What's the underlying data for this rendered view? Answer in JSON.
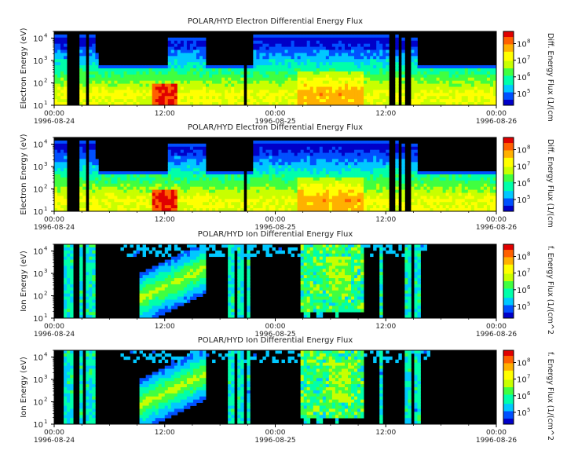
{
  "chart_data": [
    {
      "type": "heatmap",
      "title": "POLAR/HYD  Electron Differential Energy Flux",
      "ylabel": "Electron Energy (eV)",
      "yscale": "log",
      "ylim": [
        10,
        20000
      ],
      "y_ticks": [
        "10",
        "10",
        "10",
        "10"
      ],
      "y_tick_exponents": [
        "1",
        "2",
        "3",
        "4"
      ],
      "x_ticks": [
        "00:00",
        "12:00",
        "00:00",
        "12:00",
        "00:00"
      ],
      "x_dates": [
        "1996-08-24",
        "1996-08-25",
        "1996-08-26"
      ],
      "colorbar": {
        "label": "Diff. Energy Flux (1/(cm",
        "scale": "log",
        "tick_bases": [
          "10",
          "10",
          "10",
          "10"
        ],
        "tick_exponents": [
          "5",
          "6",
          "7",
          "8"
        ]
      }
    },
    {
      "type": "heatmap",
      "title": "POLAR/HYD  Electron Differential Energy Flux",
      "ylabel": "Electron Energy (eV)",
      "yscale": "log",
      "ylim": [
        10,
        20000
      ],
      "y_ticks": [
        "10",
        "10",
        "10",
        "10"
      ],
      "y_tick_exponents": [
        "1",
        "2",
        "3",
        "4"
      ],
      "x_ticks": [
        "00:00",
        "12:00",
        "00:00",
        "12:00",
        "00:00"
      ],
      "x_dates": [
        "1996-08-24",
        "1996-08-25",
        "1996-08-26"
      ],
      "colorbar": {
        "label": "Diff. Energy Flux (1/(cm",
        "scale": "log",
        "tick_bases": [
          "10",
          "10",
          "10",
          "10"
        ],
        "tick_exponents": [
          "5",
          "6",
          "7",
          "8"
        ]
      }
    },
    {
      "type": "heatmap",
      "title": "POLAR/HYD  Ion Differential Energy Flux",
      "ylabel": "Ion Energy (eV)",
      "yscale": "log",
      "ylim": [
        10,
        20000
      ],
      "y_ticks": [
        "10",
        "10",
        "10",
        "10"
      ],
      "y_tick_exponents": [
        "1",
        "2",
        "3",
        "4"
      ],
      "x_ticks": [
        "00:00",
        "12:00",
        "00:00",
        "12:00",
        "00:00"
      ],
      "x_dates": [
        "1996-08-24",
        "1996-08-25",
        "1996-08-26"
      ],
      "colorbar": {
        "label": "f. Energy Flux (1/(cm^2",
        "scale": "log",
        "tick_bases": [
          "10",
          "10",
          "10",
          "10"
        ],
        "tick_exponents": [
          "5",
          "6",
          "7",
          "8"
        ]
      }
    },
    {
      "type": "heatmap",
      "title": "POLAR/HYD  Ion Differential Energy Flux",
      "ylabel": "Ion Energy (eV)",
      "yscale": "log",
      "ylim": [
        10,
        20000
      ],
      "y_ticks": [
        "10",
        "10",
        "10",
        "10"
      ],
      "y_tick_exponents": [
        "1",
        "2",
        "3",
        "4"
      ],
      "x_ticks": [
        "00:00",
        "12:00",
        "00:00",
        "12:00",
        "00:00"
      ],
      "x_dates": [
        "1996-08-24",
        "1996-08-25",
        "1996-08-26"
      ],
      "colorbar": {
        "label": "f. Energy Flux (1/(cm^2",
        "scale": "log",
        "tick_bases": [
          "10",
          "10",
          "10",
          "10"
        ],
        "tick_exponents": [
          "5",
          "6",
          "7",
          "8"
        ]
      }
    }
  ],
  "colors": {
    "background": "#000000",
    "colormap": [
      "#0000c8",
      "#0050ff",
      "#00c8ff",
      "#00ffaa",
      "#40ff40",
      "#c8ff00",
      "#ffff00",
      "#ffb000",
      "#ff6000",
      "#e00000"
    ]
  }
}
